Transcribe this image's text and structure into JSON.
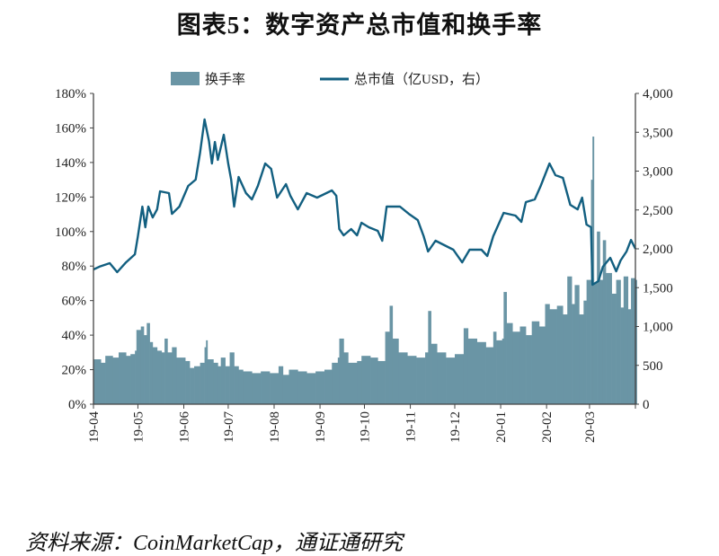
{
  "title": "图表5：数字资产总市值和换手率",
  "source": "资料来源：CoinMarketCap，通证通研究",
  "chart_data": {
    "type": "bar+line",
    "title": "图表5：数字资产总市值和换手率",
    "legend_position": "top",
    "grid": false,
    "colors": {
      "turnover": "#6a95a5",
      "market_cap": "#125f80"
    },
    "x_range": [
      "2019-04-01",
      "2020-04-01"
    ],
    "x_tick_labels": [
      "19-04",
      "19-05",
      "19-06",
      "19-07",
      "19-08",
      "19-09",
      "19-10",
      "19-11",
      "19-12",
      "20-01",
      "20-02",
      "20-03"
    ],
    "y_left": {
      "range": [
        0,
        180
      ],
      "unit": "%",
      "tick_labels": [
        "0%",
        "20%",
        "40%",
        "60%",
        "80%",
        "100%",
        "120%",
        "140%",
        "160%",
        "180%"
      ]
    },
    "y_right": {
      "range": [
        0,
        4000
      ],
      "tick_labels": [
        "0",
        "500",
        "1,000",
        "1,500",
        "2,000",
        "2,500",
        "3,000",
        "3,500",
        "4,000"
      ]
    },
    "series": [
      {
        "name": "换手率",
        "type": "bar",
        "axis": "left",
        "points": [
          [
            "2019-04-01",
            26
          ],
          [
            "2019-04-06",
            24
          ],
          [
            "2019-04-09",
            28
          ],
          [
            "2019-04-14",
            27
          ],
          [
            "2019-04-18",
            30
          ],
          [
            "2019-04-23",
            28
          ],
          [
            "2019-04-26",
            29
          ],
          [
            "2019-04-29",
            31
          ],
          [
            "2019-04-30",
            43
          ],
          [
            "2019-05-03",
            45
          ],
          [
            "2019-05-05",
            40
          ],
          [
            "2019-05-07",
            47
          ],
          [
            "2019-05-09",
            36
          ],
          [
            "2019-05-11",
            33
          ],
          [
            "2019-05-14",
            31
          ],
          [
            "2019-05-17",
            30
          ],
          [
            "2019-05-19",
            38
          ],
          [
            "2019-05-21",
            30
          ],
          [
            "2019-05-24",
            33
          ],
          [
            "2019-05-27",
            27
          ],
          [
            "2019-06-02",
            25
          ],
          [
            "2019-06-05",
            21
          ],
          [
            "2019-06-08",
            22
          ],
          [
            "2019-06-12",
            24
          ],
          [
            "2019-06-15",
            33
          ],
          [
            "2019-06-16",
            37
          ],
          [
            "2019-06-17",
            26
          ],
          [
            "2019-06-21",
            24
          ],
          [
            "2019-06-24",
            22
          ],
          [
            "2019-06-26",
            27
          ],
          [
            "2019-06-29",
            22
          ],
          [
            "2019-07-02",
            30
          ],
          [
            "2019-07-05",
            22
          ],
          [
            "2019-07-08",
            20
          ],
          [
            "2019-07-11",
            19
          ],
          [
            "2019-07-17",
            18
          ],
          [
            "2019-07-23",
            19
          ],
          [
            "2019-07-29",
            18
          ],
          [
            "2019-08-04",
            22
          ],
          [
            "2019-08-07",
            17
          ],
          [
            "2019-08-11",
            20
          ],
          [
            "2019-08-17",
            19
          ],
          [
            "2019-08-23",
            18
          ],
          [
            "2019-08-29",
            19
          ],
          [
            "2019-09-04",
            20
          ],
          [
            "2019-09-09",
            24
          ],
          [
            "2019-09-13",
            27
          ],
          [
            "2019-09-14",
            38
          ],
          [
            "2019-09-17",
            30
          ],
          [
            "2019-09-20",
            24
          ],
          [
            "2019-09-26",
            25
          ],
          [
            "2019-09-29",
            28
          ],
          [
            "2019-10-05",
            27
          ],
          [
            "2019-10-10",
            25
          ],
          [
            "2019-10-15",
            42
          ],
          [
            "2019-10-18",
            57
          ],
          [
            "2019-10-20",
            38
          ],
          [
            "2019-10-24",
            30
          ],
          [
            "2019-10-30",
            28
          ],
          [
            "2019-11-05",
            27
          ],
          [
            "2019-11-11",
            30
          ],
          [
            "2019-11-13",
            54
          ],
          [
            "2019-11-15",
            35
          ],
          [
            "2019-11-19",
            30
          ],
          [
            "2019-11-25",
            27
          ],
          [
            "2019-12-01",
            29
          ],
          [
            "2019-12-07",
            44
          ],
          [
            "2019-12-10",
            38
          ],
          [
            "2019-12-16",
            36
          ],
          [
            "2019-12-22",
            33
          ],
          [
            "2019-12-27",
            42
          ],
          [
            "2019-12-29",
            37
          ],
          [
            "2020-01-02",
            38
          ],
          [
            "2020-01-03",
            65
          ],
          [
            "2020-01-05",
            47
          ],
          [
            "2020-01-09",
            42
          ],
          [
            "2020-01-14",
            45
          ],
          [
            "2020-01-18",
            40
          ],
          [
            "2020-01-22",
            48
          ],
          [
            "2020-01-27",
            45
          ],
          [
            "2020-01-31",
            58
          ],
          [
            "2020-02-03",
            55
          ],
          [
            "2020-02-08",
            57
          ],
          [
            "2020-02-12",
            52
          ],
          [
            "2020-02-15",
            74
          ],
          [
            "2020-02-18",
            58
          ],
          [
            "2020-02-20",
            69
          ],
          [
            "2020-02-23",
            52
          ],
          [
            "2020-02-26",
            60
          ],
          [
            "2020-02-28",
            72
          ],
          [
            "2020-03-02",
            130
          ],
          [
            "2020-03-03",
            155
          ],
          [
            "2020-03-04",
            70
          ],
          [
            "2020-03-06",
            100
          ],
          [
            "2020-03-08",
            72
          ],
          [
            "2020-03-10",
            95
          ],
          [
            "2020-03-12",
            76
          ],
          [
            "2020-03-16",
            64
          ],
          [
            "2020-03-19",
            72
          ],
          [
            "2020-03-22",
            56
          ],
          [
            "2020-03-24",
            74
          ],
          [
            "2020-03-27",
            55
          ],
          [
            "2020-03-29",
            73
          ],
          [
            "2020-04-01",
            72
          ]
        ]
      },
      {
        "name": "总市值（亿USD，右）",
        "type": "line",
        "axis": "right",
        "points": [
          [
            "2019-04-01",
            1734
          ],
          [
            "2019-04-05",
            1770
          ],
          [
            "2019-04-12",
            1815
          ],
          [
            "2019-04-17",
            1700
          ],
          [
            "2019-04-23",
            1826
          ],
          [
            "2019-04-29",
            1930
          ],
          [
            "2019-05-01",
            2160
          ],
          [
            "2019-05-04",
            2543
          ],
          [
            "2019-05-06",
            2277
          ],
          [
            "2019-05-08",
            2543
          ],
          [
            "2019-05-11",
            2404
          ],
          [
            "2019-05-14",
            2508
          ],
          [
            "2019-05-16",
            2740
          ],
          [
            "2019-05-22",
            2717
          ],
          [
            "2019-05-24",
            2450
          ],
          [
            "2019-05-29",
            2543
          ],
          [
            "2019-06-04",
            2809
          ],
          [
            "2019-06-09",
            2890
          ],
          [
            "2019-06-12",
            3237
          ],
          [
            "2019-06-15",
            3665
          ],
          [
            "2019-06-18",
            3387
          ],
          [
            "2019-06-20",
            3098
          ],
          [
            "2019-06-22",
            3375
          ],
          [
            "2019-06-24",
            3144
          ],
          [
            "2019-06-28",
            3468
          ],
          [
            "2019-07-01",
            3098
          ],
          [
            "2019-07-03",
            2890
          ],
          [
            "2019-07-05",
            2543
          ],
          [
            "2019-07-08",
            2925
          ],
          [
            "2019-07-13",
            2717
          ],
          [
            "2019-07-17",
            2636
          ],
          [
            "2019-07-21",
            2809
          ],
          [
            "2019-07-26",
            3098
          ],
          [
            "2019-07-30",
            3029
          ],
          [
            "2019-08-03",
            2659
          ],
          [
            "2019-08-09",
            2832
          ],
          [
            "2019-08-12",
            2682
          ],
          [
            "2019-08-17",
            2508
          ],
          [
            "2019-08-23",
            2717
          ],
          [
            "2019-08-30",
            2659
          ],
          [
            "2019-09-09",
            2751
          ],
          [
            "2019-09-12",
            2682
          ],
          [
            "2019-09-14",
            2254
          ],
          [
            "2019-09-17",
            2173
          ],
          [
            "2019-09-22",
            2254
          ],
          [
            "2019-09-26",
            2173
          ],
          [
            "2019-09-29",
            2335
          ],
          [
            "2019-10-04",
            2277
          ],
          [
            "2019-10-10",
            2231
          ],
          [
            "2019-10-13",
            2104
          ],
          [
            "2019-10-16",
            2543
          ],
          [
            "2019-10-25",
            2543
          ],
          [
            "2019-10-31",
            2450
          ],
          [
            "2019-11-06",
            2370
          ],
          [
            "2019-11-10",
            2162
          ],
          [
            "2019-11-13",
            1965
          ],
          [
            "2019-11-18",
            2104
          ],
          [
            "2019-11-24",
            2046
          ],
          [
            "2019-11-30",
            1988
          ],
          [
            "2019-12-06",
            1826
          ],
          [
            "2019-12-11",
            1988
          ],
          [
            "2019-12-19",
            1988
          ],
          [
            "2019-12-23",
            1907
          ],
          [
            "2019-12-27",
            2162
          ],
          [
            "2020-01-03",
            2462
          ],
          [
            "2020-01-11",
            2428
          ],
          [
            "2020-01-15",
            2347
          ],
          [
            "2020-01-18",
            2601
          ],
          [
            "2020-01-24",
            2636
          ],
          [
            "2020-01-28",
            2809
          ],
          [
            "2020-02-03",
            3098
          ],
          [
            "2020-02-07",
            2948
          ],
          [
            "2020-02-12",
            2913
          ],
          [
            "2020-02-17",
            2566
          ],
          [
            "2020-02-22",
            2508
          ],
          [
            "2020-02-25",
            2659
          ],
          [
            "2020-02-28",
            2312
          ],
          [
            "2020-03-02",
            2277
          ],
          [
            "2020-03-03",
            1538
          ],
          [
            "2020-03-07",
            1584
          ],
          [
            "2020-03-10",
            1769
          ],
          [
            "2020-03-15",
            1884
          ],
          [
            "2020-03-19",
            1711
          ],
          [
            "2020-03-22",
            1850
          ],
          [
            "2020-03-26",
            1965
          ],
          [
            "2020-03-29",
            2115
          ],
          [
            "2020-04-01",
            2000
          ]
        ]
      }
    ]
  }
}
